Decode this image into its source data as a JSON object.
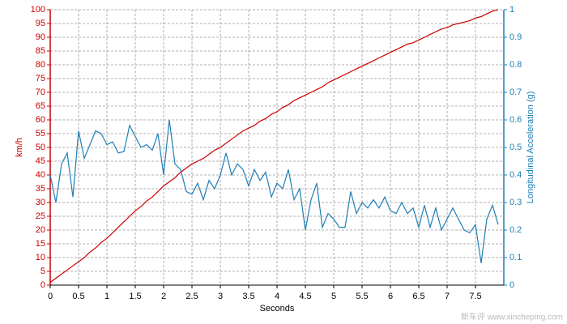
{
  "chart_data": {
    "type": "line",
    "xlabel": "Seconds",
    "ylabel": "km/h",
    "y2label": "Longitudinal Acceleration (g)",
    "watermark": "新车评 www.xincheping.com",
    "x": [
      0,
      0.1,
      0.2,
      0.3,
      0.4,
      0.5,
      0.6,
      0.7,
      0.8,
      0.9,
      1,
      1.1,
      1.2,
      1.3,
      1.4,
      1.5,
      1.6,
      1.7,
      1.8,
      1.9,
      2,
      2.1,
      2.2,
      2.3,
      2.4,
      2.5,
      2.6,
      2.7,
      2.8,
      2.9,
      3,
      3.1,
      3.2,
      3.3,
      3.4,
      3.5,
      3.6,
      3.7,
      3.8,
      3.9,
      4,
      4.1,
      4.2,
      4.3,
      4.4,
      4.5,
      4.6,
      4.7,
      4.8,
      4.9,
      5,
      5.1,
      5.2,
      5.3,
      5.4,
      5.5,
      5.6,
      5.7,
      5.8,
      5.9,
      6,
      6.1,
      6.2,
      6.3,
      6.4,
      6.5,
      6.6,
      6.7,
      6.8,
      6.9,
      7,
      7.1,
      7.2,
      7.3,
      7.4,
      7.5,
      7.6,
      7.7,
      7.8,
      7.9
    ],
    "series": [
      {
        "name": "km/h",
        "color": "#cc0000",
        "axis": "y",
        "values": [
          1,
          2.5,
          4,
          5.5,
          7,
          8.5,
          10,
          12,
          13.5,
          15.5,
          17,
          19,
          21,
          23,
          25,
          27,
          28.5,
          30.5,
          32,
          34,
          36,
          37.5,
          39,
          41,
          42.5,
          44,
          45,
          46,
          47.5,
          49,
          50,
          51.5,
          53,
          54.5,
          56,
          57,
          58,
          59.5,
          60.5,
          62,
          63,
          64.5,
          65.5,
          67,
          68,
          69,
          70,
          71,
          72,
          73.5,
          74.5,
          75.5,
          76.5,
          77.5,
          78.5,
          79.5,
          80.5,
          81.5,
          82.5,
          83.5,
          84.5,
          85.5,
          86.5,
          87.5,
          88,
          89,
          90,
          91,
          92,
          93,
          93.5,
          94.5,
          95,
          95.5,
          96,
          97,
          97.5,
          98.5,
          99.5,
          100
        ]
      },
      {
        "name": "Longitudinal Acceleration (g)",
        "color": "#1f7fb5",
        "axis": "y2",
        "values": [
          0.4,
          0.3,
          0.44,
          0.48,
          0.32,
          0.56,
          0.46,
          0.51,
          0.56,
          0.55,
          0.51,
          0.52,
          0.48,
          0.485,
          0.58,
          0.54,
          0.5,
          0.51,
          0.49,
          0.55,
          0.4,
          0.6,
          0.44,
          0.42,
          0.34,
          0.33,
          0.37,
          0.31,
          0.38,
          0.35,
          0.4,
          0.48,
          0.4,
          0.44,
          0.42,
          0.36,
          0.42,
          0.38,
          0.41,
          0.32,
          0.37,
          0.35,
          0.42,
          0.31,
          0.35,
          0.2,
          0.31,
          0.37,
          0.21,
          0.26,
          0.24,
          0.21,
          0.21,
          0.34,
          0.26,
          0.3,
          0.28,
          0.31,
          0.28,
          0.32,
          0.27,
          0.26,
          0.3,
          0.26,
          0.28,
          0.21,
          0.29,
          0.21,
          0.28,
          0.2,
          0.24,
          0.28,
          0.24,
          0.2,
          0.19,
          0.22,
          0.08,
          0.24,
          0.29,
          0.22
        ]
      }
    ],
    "xlim": [
      0,
      8
    ],
    "xticks": [
      0,
      0.5,
      1,
      1.5,
      2,
      2.5,
      3,
      3.5,
      4,
      4.5,
      5,
      5.5,
      6,
      6.5,
      7,
      7.5
    ],
    "ylim": [
      0,
      100
    ],
    "yticks": [
      0,
      5,
      10,
      15,
      20,
      25,
      30,
      35,
      40,
      45,
      50,
      55,
      60,
      65,
      70,
      75,
      80,
      85,
      90,
      95,
      100
    ],
    "y2lim": [
      0,
      1
    ],
    "y2ticks": [
      0,
      0.1,
      0.2,
      0.3,
      0.4,
      0.5,
      0.6,
      0.7,
      0.8,
      0.9,
      1
    ],
    "grid": true
  }
}
